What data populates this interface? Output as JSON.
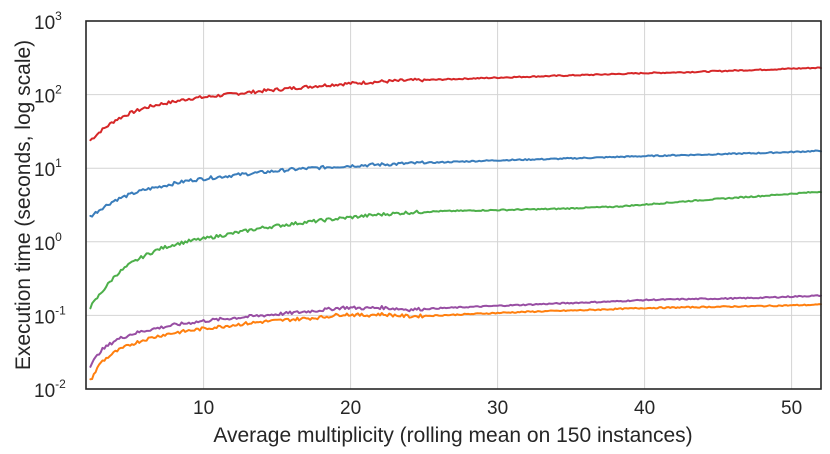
{
  "chart_data": {
    "type": "line",
    "title": "",
    "xlabel": "Average multiplicity (rolling mean on 150 instances)",
    "ylabel": "Execution time (seconds, log scale)",
    "xlim": [
      2,
      52
    ],
    "ylim": [
      0.01,
      1000
    ],
    "yscale": "log",
    "grid": true,
    "x_ticks": [
      10,
      20,
      30,
      40,
      50
    ],
    "y_ticks": [
      {
        "value": 0.01,
        "base": "10",
        "exp": "-2"
      },
      {
        "value": 0.1,
        "base": "10",
        "exp": "-1"
      },
      {
        "value": 1,
        "base": "10",
        "exp": "0"
      },
      {
        "value": 10,
        "base": "10",
        "exp": "1"
      },
      {
        "value": 100,
        "base": "10",
        "exp": "2"
      },
      {
        "value": 1000,
        "base": "10",
        "exp": "3"
      }
    ],
    "series": [
      {
        "color": "#d62728",
        "points": [
          [
            2.3,
            24
          ],
          [
            3,
            32
          ],
          [
            4,
            45
          ],
          [
            5,
            56
          ],
          [
            6,
            66
          ],
          [
            7,
            74
          ],
          [
            8,
            80
          ],
          [
            9,
            88
          ],
          [
            10,
            92
          ],
          [
            12,
            102
          ],
          [
            14,
            112
          ],
          [
            16,
            122
          ],
          [
            18,
            133
          ],
          [
            20,
            142
          ],
          [
            22,
            150
          ],
          [
            24,
            156
          ],
          [
            26,
            160
          ],
          [
            28,
            165
          ],
          [
            30,
            170
          ],
          [
            32,
            175
          ],
          [
            34,
            180
          ],
          [
            36,
            185
          ],
          [
            38,
            190
          ],
          [
            40,
            196
          ],
          [
            42,
            200
          ],
          [
            44,
            205
          ],
          [
            46,
            212
          ],
          [
            48,
            218
          ],
          [
            50,
            225
          ],
          [
            52,
            232
          ]
        ]
      },
      {
        "color": "#3a7dbb",
        "points": [
          [
            2.3,
            2.2
          ],
          [
            3,
            2.8
          ],
          [
            4,
            3.7
          ],
          [
            5,
            4.4
          ],
          [
            6,
            5.1
          ],
          [
            7,
            5.6
          ],
          [
            8,
            6.2
          ],
          [
            9,
            6.8
          ],
          [
            10,
            7.2
          ],
          [
            12,
            8.0
          ],
          [
            14,
            8.8
          ],
          [
            16,
            9.6
          ],
          [
            18,
            10.2
          ],
          [
            20,
            10.8
          ],
          [
            22,
            11.2
          ],
          [
            24,
            11.6
          ],
          [
            26,
            12.0
          ],
          [
            28,
            12.4
          ],
          [
            30,
            12.8
          ],
          [
            32,
            13.1
          ],
          [
            34,
            13.4
          ],
          [
            36,
            13.8
          ],
          [
            38,
            14.2
          ],
          [
            40,
            14.6
          ],
          [
            42,
            15.0
          ],
          [
            44,
            15.3
          ],
          [
            46,
            15.7
          ],
          [
            48,
            16.1
          ],
          [
            50,
            16.6
          ],
          [
            52,
            17.2
          ]
        ]
      },
      {
        "color": "#4daf4a",
        "points": [
          [
            2.3,
            0.13
          ],
          [
            3,
            0.2
          ],
          [
            4,
            0.35
          ],
          [
            5,
            0.5
          ],
          [
            6,
            0.65
          ],
          [
            7,
            0.8
          ],
          [
            8,
            0.92
          ],
          [
            9,
            1.02
          ],
          [
            10,
            1.1
          ],
          [
            12,
            1.3
          ],
          [
            14,
            1.55
          ],
          [
            16,
            1.75
          ],
          [
            18,
            1.95
          ],
          [
            20,
            2.15
          ],
          [
            22,
            2.35
          ],
          [
            24,
            2.5
          ],
          [
            26,
            2.6
          ],
          [
            28,
            2.65
          ],
          [
            30,
            2.7
          ],
          [
            32,
            2.75
          ],
          [
            34,
            2.8
          ],
          [
            36,
            2.9
          ],
          [
            38,
            3.0
          ],
          [
            40,
            3.2
          ],
          [
            42,
            3.45
          ],
          [
            44,
            3.7
          ],
          [
            46,
            3.95
          ],
          [
            48,
            4.2
          ],
          [
            50,
            4.5
          ],
          [
            52,
            4.8
          ]
        ]
      },
      {
        "color": "#984ea3",
        "points": [
          [
            2.3,
            0.021
          ],
          [
            3,
            0.033
          ],
          [
            4,
            0.046
          ],
          [
            5,
            0.055
          ],
          [
            6,
            0.062
          ],
          [
            7,
            0.068
          ],
          [
            8,
            0.074
          ],
          [
            9,
            0.079
          ],
          [
            10,
            0.084
          ],
          [
            12,
            0.092
          ],
          [
            14,
            0.1
          ],
          [
            16,
            0.108
          ],
          [
            18,
            0.118
          ],
          [
            19.5,
            0.128
          ],
          [
            21,
            0.125
          ],
          [
            22,
            0.128
          ],
          [
            24,
            0.12
          ],
          [
            26,
            0.125
          ],
          [
            28,
            0.13
          ],
          [
            30,
            0.135
          ],
          [
            32,
            0.14
          ],
          [
            34,
            0.145
          ],
          [
            36,
            0.15
          ],
          [
            38,
            0.155
          ],
          [
            40,
            0.162
          ],
          [
            42,
            0.165
          ],
          [
            44,
            0.168
          ],
          [
            46,
            0.17
          ],
          [
            48,
            0.174
          ],
          [
            50,
            0.18
          ],
          [
            52,
            0.186
          ]
        ]
      },
      {
        "color": "#ff7f0e",
        "points": [
          [
            2.3,
            0.013
          ],
          [
            3,
            0.023
          ],
          [
            4,
            0.032
          ],
          [
            5,
            0.04
          ],
          [
            6,
            0.047
          ],
          [
            7,
            0.053
          ],
          [
            8,
            0.058
          ],
          [
            9,
            0.062
          ],
          [
            10,
            0.066
          ],
          [
            12,
            0.074
          ],
          [
            14,
            0.082
          ],
          [
            16,
            0.088
          ],
          [
            18,
            0.094
          ],
          [
            19.5,
            0.104
          ],
          [
            21,
            0.1
          ],
          [
            22,
            0.104
          ],
          [
            24,
            0.097
          ],
          [
            26,
            0.1
          ],
          [
            28,
            0.104
          ],
          [
            30,
            0.108
          ],
          [
            32,
            0.112
          ],
          [
            34,
            0.115
          ],
          [
            36,
            0.118
          ],
          [
            38,
            0.122
          ],
          [
            40,
            0.126
          ],
          [
            42,
            0.128
          ],
          [
            44,
            0.13
          ],
          [
            46,
            0.132
          ],
          [
            48,
            0.134
          ],
          [
            50,
            0.137
          ],
          [
            52,
            0.14
          ]
        ]
      }
    ]
  }
}
